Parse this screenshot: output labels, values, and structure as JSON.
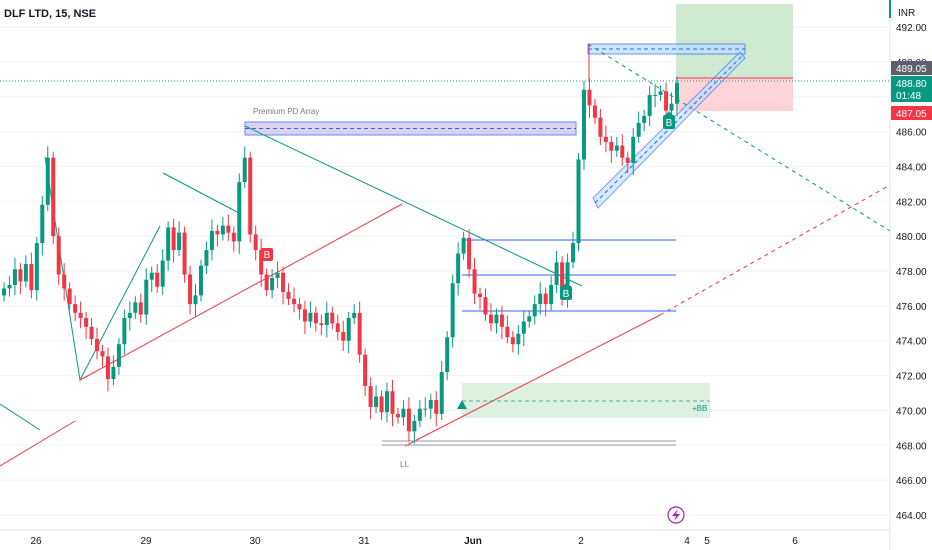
{
  "header": {
    "symbol_title": "DLF LTD, 15, NSE",
    "currency": "INR"
  },
  "price_tags": [
    {
      "label": "489.05",
      "value": 489.05,
      "bg": "#5d606b",
      "fg": "#ffffff"
    },
    {
      "label": "488.80",
      "value": 488.8,
      "bg": "#089981",
      "fg": "#ffffff",
      "sub": "01:48"
    },
    {
      "label": "487.05",
      "value": 487.05,
      "bg": "#f23645",
      "fg": "#ffffff"
    }
  ],
  "annotations": {
    "premium_pd_array": "Premium PD Array",
    "ll": "LL",
    "bb": "+BB",
    "buy_marker": "B"
  },
  "colors": {
    "up": "#089981",
    "down": "#f23645",
    "grid": "#f0f3fa",
    "blue_line": "#2962ff",
    "purple_zone": "#b39ddb",
    "green_zone": "#c8e6c9",
    "red_zone": "#ffcdd2"
  },
  "icons": {
    "bottom_marker": "lightning-icon",
    "buy_triangle": "triangle-up-icon"
  },
  "chart_data": {
    "type": "candlestick",
    "title": "DLF LTD, 15, NSE",
    "ylabel": "INR",
    "ylim": [
      463.5,
      492.8
    ],
    "grid": true,
    "y_ticks": [
      464,
      466,
      468,
      470,
      472,
      474,
      476,
      478,
      480,
      482,
      484,
      486,
      488,
      490,
      492
    ],
    "y_tick_labels": [
      "464.00",
      "466.00",
      "468.00",
      "470.00",
      "472.00",
      "474.00",
      "476.00",
      "478.00",
      "480.00",
      "482.00",
      "484.00",
      "486.00",
      "488.00",
      "490.00",
      "492.00"
    ],
    "x_tick_labels": [
      "26",
      "29",
      "30",
      "31",
      "Jun",
      "2",
      "4",
      "5",
      "6"
    ],
    "series_approx_closes": [
      477,
      477.2,
      478.1,
      477.4,
      478.4,
      476.9,
      479.6,
      481.8,
      484.5,
      480,
      477.8,
      477,
      476.1,
      475.6,
      475.3,
      474.8,
      474.1,
      473.4,
      473.1,
      471.8,
      472.5,
      473.8,
      475.3,
      475.6,
      476.2,
      475.5,
      477.5,
      477.9,
      477.1,
      478.6,
      480.5,
      479.2,
      480.2,
      477.8,
      476.1,
      476.6,
      478.3,
      479.2,
      480.3,
      480.1,
      480.6,
      480.2,
      479.7,
      483.1,
      484.5,
      480.1,
      479.2,
      477.8,
      476.9,
      477.6,
      477.9,
      476.8,
      476.4,
      476.1,
      475.8,
      475.1,
      475.6,
      475,
      474.9,
      475.6,
      475,
      474.5,
      474,
      475.3,
      475.6,
      473.2,
      471.4,
      470.2,
      470.8,
      469.9,
      471.1,
      469.8,
      469.6,
      470.1,
      468.8,
      469.4,
      470.1,
      470.1,
      470.6,
      469.8,
      472.2,
      474.2,
      477.3,
      479,
      479.9,
      478.1,
      476.7,
      476.5,
      475.5,
      475,
      475.5,
      474.8,
      474.2,
      473.8,
      474.4,
      475.1,
      475.4,
      476.1,
      476.7,
      476.1,
      477.2,
      478.5,
      476.6,
      478.5,
      479.6,
      484.4,
      488.4,
      487.5,
      486.8,
      485.7,
      485.4,
      484.9,
      485.2,
      484.5,
      484.2,
      485.7,
      486.5,
      486.9,
      488.1,
      488.1,
      488.3,
      487.2,
      487.6,
      488.8
    ]
  }
}
